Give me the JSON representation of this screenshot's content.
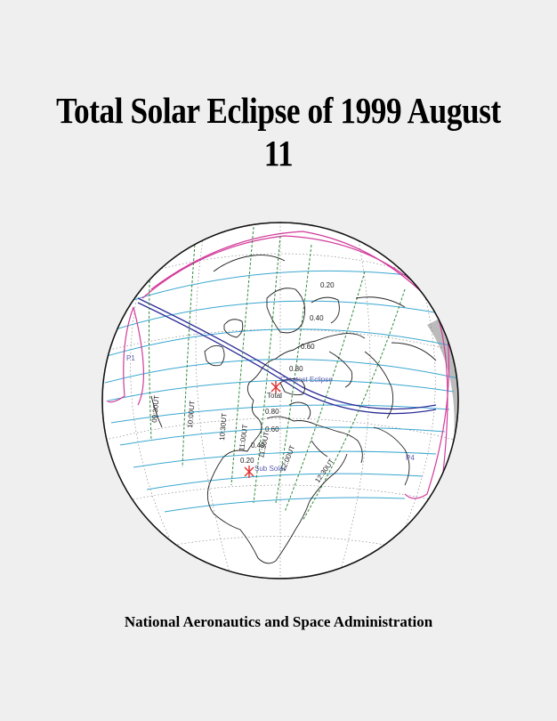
{
  "header": {
    "title": "Total Solar Eclipse of 1999 August 11"
  },
  "map": {
    "magnitude_labels": [
      "0.20",
      "0.40",
      "0.60",
      "0.80",
      "0.80",
      "0.60",
      "0.40",
      "0.20"
    ],
    "time_labels": [
      "09:30UT",
      "10:00UT",
      "10:30UT",
      "11:00UT",
      "11:30UT",
      "12:00UT",
      "12:30UT"
    ],
    "contact_labels": [
      "P1",
      "P4"
    ],
    "greatest_eclipse_label": "Greatest Eclipse",
    "total_label": "Total",
    "sub_solar_label": "Sub Solar",
    "colors": {
      "magnitude": "#3aa7d0",
      "penumbra": "#d23a9a",
      "umbra_path": "#2d2d99",
      "time": "#2f8a3a",
      "marker": "#e03030",
      "label": "#5a5ab0"
    }
  },
  "footer": {
    "agency": "National Aeronautics and Space Administration"
  }
}
